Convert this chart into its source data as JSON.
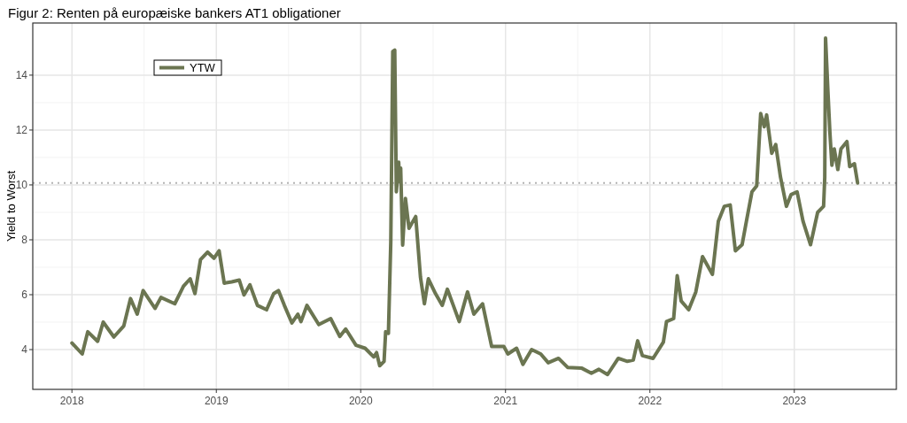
{
  "chart_data": {
    "type": "line",
    "title": "Figur 2: Renten på europæiske bankers AT1 obligationer",
    "ylabel": "Yield to Worst",
    "x": [
      "2018-01-01",
      "2018-01-27",
      "2018-02-10",
      "2018-03-07",
      "2018-03-21",
      "2018-04-17",
      "2018-05-12",
      "2018-05-29",
      "2018-06-15",
      "2018-06-30",
      "2018-07-30",
      "2018-08-14",
      "2018-09-18",
      "2018-10-10",
      "2018-10-27",
      "2018-11-08",
      "2018-11-22",
      "2018-12-10",
      "2018-12-26",
      "2019-01-08",
      "2019-01-21",
      "2019-02-09",
      "2019-02-28",
      "2019-03-12",
      "2019-03-27",
      "2019-04-15",
      "2019-05-08",
      "2019-05-26",
      "2019-06-07",
      "2019-06-22",
      "2019-07-11",
      "2019-07-26",
      "2019-08-03",
      "2019-08-18",
      "2019-09-17",
      "2019-10-17",
      "2019-11-09",
      "2019-11-24",
      "2019-12-20",
      "2020-01-12",
      "2020-02-03",
      "2020-02-10",
      "2020-02-18",
      "2020-02-29",
      "2020-03-04",
      "2020-03-11",
      "2020-03-17",
      "2020-03-22",
      "2020-03-27",
      "2020-03-31",
      "2020-04-06",
      "2020-04-08",
      "2020-04-11",
      "2020-04-16",
      "2020-04-23",
      "2020-05-02",
      "2020-05-19",
      "2020-05-31",
      "2020-06-10",
      "2020-06-20",
      "2020-07-08",
      "2020-07-25",
      "2020-08-07",
      "2020-09-06",
      "2020-09-27",
      "2020-10-13",
      "2020-11-04",
      "2020-11-27",
      "2020-12-08",
      "2020-12-28",
      "2021-01-07",
      "2021-01-29",
      "2021-02-14",
      "2021-03-08",
      "2021-03-31",
      "2021-04-19",
      "2021-05-15",
      "2021-06-07",
      "2021-07-13",
      "2021-08-06",
      "2021-08-25",
      "2021-09-16",
      "2021-10-13",
      "2021-11-05",
      "2021-11-20",
      "2021-12-01",
      "2021-12-13",
      "2022-01-09",
      "2022-02-04",
      "2022-02-12",
      "2022-03-02",
      "2022-03-11",
      "2022-03-21",
      "2022-04-09",
      "2022-04-27",
      "2022-05-14",
      "2022-06-08",
      "2022-06-23",
      "2022-07-08",
      "2022-07-23",
      "2022-08-05",
      "2022-08-22",
      "2022-09-02",
      "2022-09-16",
      "2022-09-28",
      "2022-10-08",
      "2022-10-17",
      "2022-10-23",
      "2022-11-05",
      "2022-11-15",
      "2022-11-27",
      "2022-12-12",
      "2022-12-24",
      "2023-01-08",
      "2023-01-23",
      "2023-02-11",
      "2023-03-01",
      "2023-03-16",
      "2023-03-19",
      "2023-03-21",
      "2023-03-27",
      "2023-04-01",
      "2023-04-06",
      "2023-04-12",
      "2023-04-21",
      "2023-04-29",
      "2023-05-14",
      "2023-05-21",
      "2023-06-02",
      "2023-06-10"
    ],
    "series": [
      {
        "name": "YTW",
        "color": "#6b7551",
        "values": [
          4.24,
          3.84,
          4.65,
          4.3,
          5.0,
          4.46,
          4.86,
          5.86,
          5.29,
          6.15,
          5.5,
          5.9,
          5.67,
          6.31,
          6.58,
          6.04,
          7.28,
          7.55,
          7.33,
          7.6,
          6.42,
          6.47,
          6.53,
          5.99,
          6.36,
          5.61,
          5.45,
          6.04,
          6.15,
          5.61,
          4.97,
          5.29,
          5.02,
          5.61,
          4.91,
          5.13,
          4.48,
          4.75,
          4.16,
          4.05,
          3.73,
          3.89,
          3.41,
          3.57,
          4.65,
          4.59,
          7.93,
          14.86,
          14.91,
          9.75,
          10.83,
          10.13,
          10.61,
          7.81,
          9.51,
          8.42,
          8.85,
          6.64,
          5.67,
          6.58,
          6.04,
          5.61,
          6.2,
          5.02,
          6.1,
          5.29,
          5.67,
          4.11,
          4.11,
          4.11,
          3.84,
          4.05,
          3.46,
          4.0,
          3.84,
          3.52,
          3.68,
          3.35,
          3.32,
          3.14,
          3.28,
          3.09,
          3.68,
          3.57,
          3.62,
          4.32,
          3.78,
          3.68,
          4.27,
          5.02,
          5.13,
          6.69,
          5.77,
          5.45,
          6.1,
          7.39,
          6.74,
          8.68,
          9.22,
          9.27,
          7.6,
          7.82,
          8.68,
          9.75,
          9.97,
          12.6,
          12.12,
          12.55,
          11.15,
          11.47,
          10.29,
          9.22,
          9.65,
          9.75,
          8.68,
          7.82,
          9.0,
          9.22,
          10.29,
          15.35,
          13.4,
          11.9,
          10.72,
          11.31,
          10.56,
          11.31,
          11.58,
          10.67,
          10.77,
          10.07
        ]
      }
    ],
    "xlim": [
      "2017-09-24",
      "2023-09-16"
    ],
    "xticks": [
      "2018",
      "2019",
      "2020",
      "2021",
      "2022",
      "2023"
    ],
    "ylim": [
      2.55,
      15.9
    ],
    "yticks": [
      4,
      6,
      8,
      10,
      12,
      14
    ],
    "ref_lines": [
      {
        "axis": "y",
        "value": 10.07,
        "color": "#b3b3b3",
        "line_style": "dotted"
      }
    ],
    "grid": true,
    "legend": "top left",
    "line_style": "solid",
    "marker": "none"
  }
}
